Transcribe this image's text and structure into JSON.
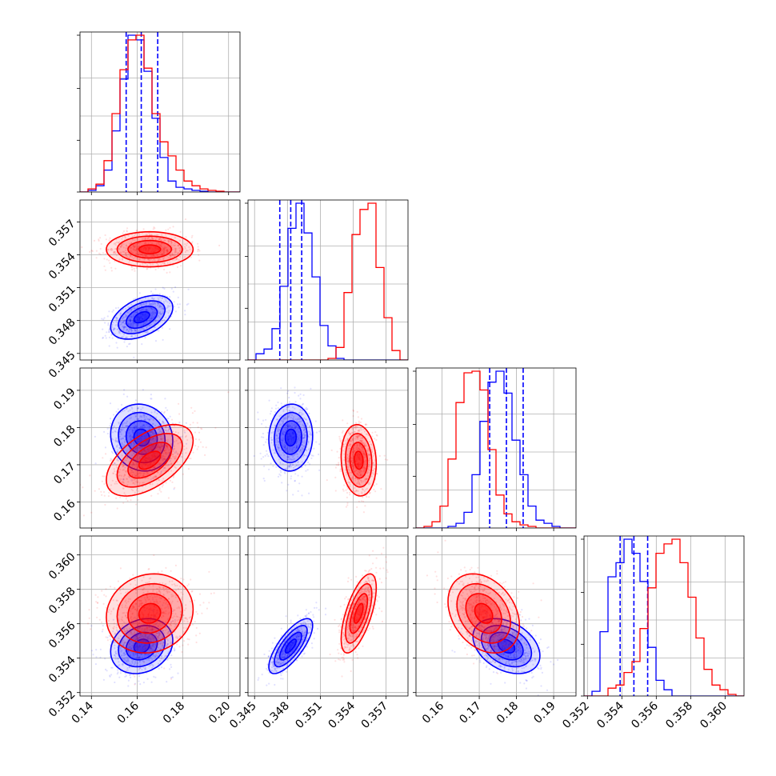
{
  "chart_data": {
    "type": "corner",
    "grid": true,
    "colors": {
      "blue": "#0000ff",
      "red": "#ff0000",
      "grid": "#b0b0b0"
    },
    "parameters": [
      {
        "ticks": [
          0.14,
          0.16,
          0.18,
          0.2
        ],
        "tick_labels": [
          "0.14",
          "0.16",
          "0.18",
          "0.20"
        ],
        "range": [
          0.135,
          0.205
        ]
      },
      {
        "ticks": [
          0.345,
          0.348,
          0.351,
          0.354,
          0.357
        ],
        "tick_labels": [
          "0.345",
          "0.348",
          "0.351",
          "0.354",
          "0.357"
        ],
        "range": [
          0.3444,
          0.359
        ]
      },
      {
        "ticks": [
          0.16,
          0.17,
          0.18,
          0.19
        ],
        "tick_labels": [
          "0.16",
          "0.17",
          "0.18",
          "0.19"
        ],
        "range": [
          0.153,
          0.196
        ]
      },
      {
        "ticks": [
          0.352,
          0.354,
          0.356,
          0.358,
          0.36
        ],
        "tick_labels": [
          "0.352",
          "0.354",
          "0.356",
          "0.358",
          "0.360"
        ],
        "range": [
          0.3518,
          0.3611
        ]
      }
    ],
    "series": [
      {
        "color": "blue",
        "histograms": [
          {
            "bin_start": 0.135,
            "bin_width": 0.0035,
            "counts": [
              0,
              0.01,
              0.04,
              0.14,
              0.39,
              0.72,
              1.0,
              0.97,
              0.77,
              0.47,
              0.22,
              0.07,
              0.03,
              0.02,
              0.01,
              0.005,
              0,
              0,
              0,
              0
            ]
          },
          {
            "bin_start": 0.3444,
            "bin_width": 0.00073,
            "counts": [
              0,
              0.04,
              0.07,
              0.2,
              0.47,
              0.84,
              1.0,
              0.81,
              0.53,
              0.22,
              0.09,
              0.01,
              0,
              0,
              0,
              0,
              0,
              0,
              0,
              0
            ]
          },
          {
            "bin_start": 0.153,
            "bin_width": 0.00215,
            "counts": [
              0,
              0,
              0,
              0,
              0.01,
              0.03,
              0.1,
              0.34,
              0.68,
              0.93,
              1.0,
              0.86,
              0.56,
              0.34,
              0.14,
              0.05,
              0.03,
              0.01,
              0,
              0
            ]
          },
          {
            "bin_start": 0.3518,
            "bin_width": 0.000465,
            "counts": [
              0,
              0.03,
              0.41,
              0.76,
              0.85,
              1.0,
              0.91,
              0.73,
              0.31,
              0.1,
              0.04,
              0,
              0,
              0,
              0,
              0,
              0,
              0,
              0,
              0
            ]
          }
        ],
        "quantiles_16_50_84": [
          [
            0.1552,
            0.1618,
            0.169
          ],
          [
            0.3473,
            0.3483,
            0.3493
          ],
          [
            0.1728,
            0.1773,
            0.1818
          ],
          [
            0.3539,
            0.3547,
            0.3555
          ]
        ],
        "means": [
          0.162,
          0.3483,
          0.1773,
          0.3547
        ],
        "sigmas": [
          0.0068,
          0.001,
          0.0045,
          0.0008
        ],
        "correlations": {
          "0-1": 0.45,
          "0-2": -0.1,
          "1-2": 0.05,
          "0-3": 0.2,
          "1-3": 0.75,
          "2-3": -0.35
        }
      },
      {
        "color": "red",
        "histograms": [
          {
            "bin_start": 0.135,
            "bin_width": 0.0035,
            "counts": [
              0,
              0.02,
              0.05,
              0.2,
              0.5,
              0.78,
              0.97,
              1.0,
              0.79,
              0.5,
              0.32,
              0.23,
              0.14,
              0.07,
              0.04,
              0.02,
              0.01,
              0.005,
              0,
              0
            ]
          },
          {
            "bin_start": 0.3444,
            "bin_width": 0.00073,
            "counts": [
              0,
              0,
              0,
              0,
              0,
              0,
              0,
              0,
              0,
              0,
              0.01,
              0.08,
              0.43,
              0.8,
              0.96,
              1.0,
              0.59,
              0.27,
              0.06,
              0
            ]
          },
          {
            "bin_start": 0.153,
            "bin_width": 0.00215,
            "counts": [
              0,
              0.01,
              0.04,
              0.14,
              0.44,
              0.8,
              0.99,
              1.0,
              0.88,
              0.5,
              0.21,
              0.09,
              0.04,
              0.02,
              0.01,
              0,
              0,
              0,
              0,
              0
            ]
          },
          {
            "bin_start": 0.3518,
            "bin_width": 0.000465,
            "counts": [
              0,
              0,
              0,
              0.05,
              0.07,
              0.15,
              0.22,
              0.43,
              0.69,
              0.91,
              0.97,
              1.0,
              0.85,
              0.63,
              0.37,
              0.17,
              0.07,
              0.04,
              0.01,
              0
            ]
          }
        ],
        "means": [
          0.1655,
          0.3545,
          0.1712,
          0.3566
        ],
        "sigmas": [
          0.0095,
          0.0008,
          0.0048,
          0.00115
        ],
        "correlations": {
          "0-1": 0.0,
          "0-2": 0.55,
          "1-2": -0.1,
          "0-3": 0.1,
          "1-3": 0.65,
          "2-3": -0.3
        }
      }
    ]
  }
}
